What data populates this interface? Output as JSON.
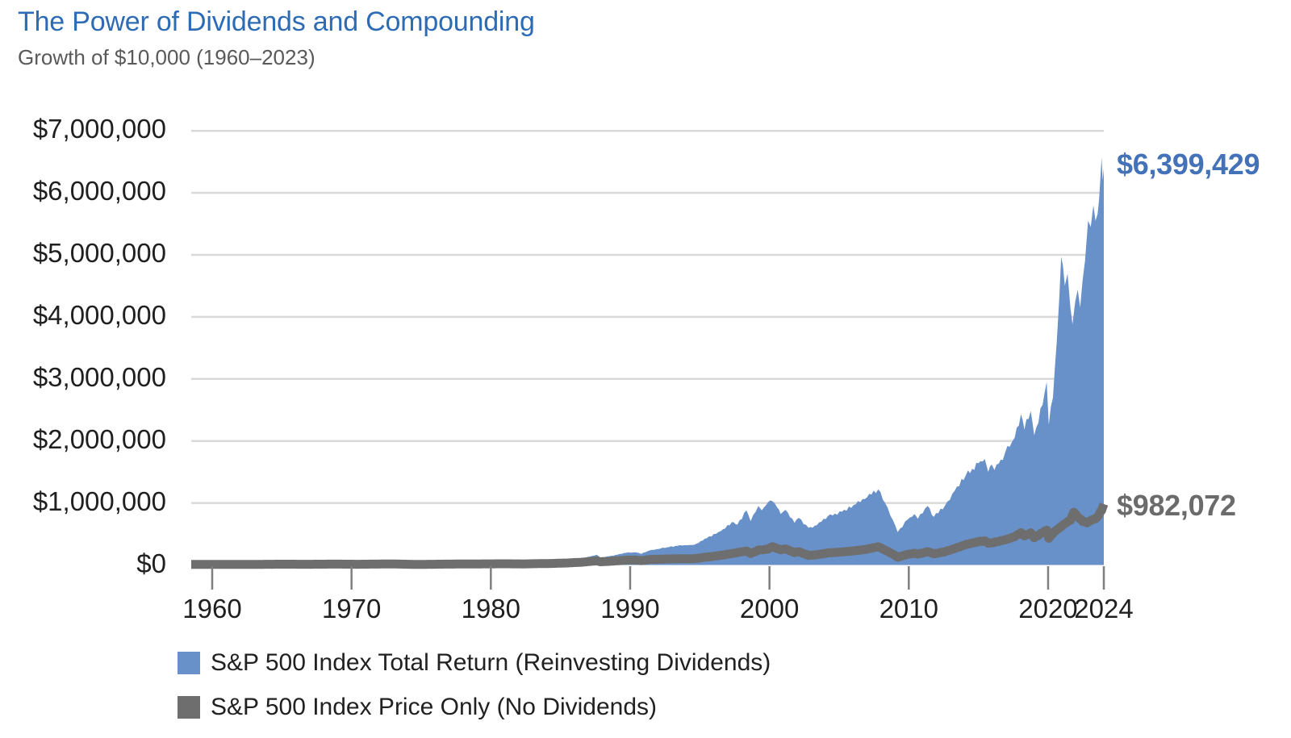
{
  "chart_data": {
    "type": "area",
    "title": "The Power of Dividends and Compounding",
    "subtitle": "Growth of $10,000 (1960–2023)",
    "legend_position": "bottom-left",
    "grid": "horizontal",
    "colors": {
      "title_text": "#2d6cb5",
      "subtitle_text": "#595959",
      "axis_text": "#1f1f1f",
      "gridline": "#d9d9d9",
      "tick_mark": "#7f7f7f"
    },
    "x_axis": {
      "ticks": [
        "1960",
        "1970",
        "1980",
        "1990",
        "2000",
        "2010",
        "2020",
        "2024"
      ],
      "tick_years": [
        1960,
        1970,
        1980,
        1990,
        2000,
        2010,
        2020,
        2024
      ],
      "range": [
        1960,
        2024
      ]
    },
    "y_axis": {
      "tick_labels": [
        "$0",
        "$1,000,000",
        "$2,000,000",
        "$3,000,000",
        "$4,000,000",
        "$5,000,000",
        "$6,000,000",
        "$7,000,000"
      ],
      "tick_values": [
        0,
        1000000,
        2000000,
        3000000,
        4000000,
        5000000,
        6000000,
        7000000
      ],
      "min": 0,
      "max": 7000000
    },
    "series": [
      {
        "name": "S&P 500 Index Total Return (Reinvesting Dividends)",
        "style": "area",
        "color": "#6890c9",
        "start_value": 10000,
        "end_value": 6399429,
        "end_label": "$6,399,429",
        "end_label_color": "#4472b8",
        "points": [
          [
            1960.0,
            10000
          ],
          [
            1961.0,
            12600
          ],
          [
            1961.9,
            13100
          ],
          [
            1962.5,
            10700
          ],
          [
            1963.8,
            14200
          ],
          [
            1965.8,
            17600
          ],
          [
            1966.7,
            15200
          ],
          [
            1968.8,
            20600
          ],
          [
            1970.4,
            17300
          ],
          [
            1971.5,
            22500
          ],
          [
            1972.9,
            26500
          ],
          [
            1973.8,
            21000
          ],
          [
            1974.7,
            16200
          ],
          [
            1976.0,
            25500
          ],
          [
            1976.9,
            28500
          ],
          [
            1977.8,
            26500
          ],
          [
            1979.0,
            31500
          ],
          [
            1980.9,
            43500
          ],
          [
            1982.3,
            40000
          ],
          [
            1983.5,
            58000
          ],
          [
            1984.4,
            57500
          ],
          [
            1985.5,
            82000
          ],
          [
            1986.5,
            105000
          ],
          [
            1987.6,
            165000
          ],
          [
            1987.85,
            122000
          ],
          [
            1988.5,
            140000
          ],
          [
            1989.7,
            195000
          ],
          [
            1990.4,
            205000
          ],
          [
            1990.8,
            178000
          ],
          [
            1991.4,
            235000
          ],
          [
            1992.2,
            268000
          ],
          [
            1993.4,
            310000
          ],
          [
            1994.6,
            325000
          ],
          [
            1995.5,
            430000
          ],
          [
            1996.5,
            545000
          ],
          [
            1997.3,
            690000
          ],
          [
            1997.7,
            650000
          ],
          [
            1998.35,
            880000
          ],
          [
            1998.65,
            705000
          ],
          [
            1999.2,
            950000
          ],
          [
            1999.45,
            880000
          ],
          [
            1999.9,
            1010000
          ],
          [
            2000.2,
            1030000
          ],
          [
            2000.55,
            930000
          ],
          [
            2000.8,
            820000
          ],
          [
            2001.15,
            890000
          ],
          [
            2001.8,
            680000
          ],
          [
            2002.1,
            760000
          ],
          [
            2002.8,
            600000
          ],
          [
            2003.4,
            640000
          ],
          [
            2004.2,
            790000
          ],
          [
            2005.2,
            860000
          ],
          [
            2006.2,
            980000
          ],
          [
            2007.0,
            1090000
          ],
          [
            2007.8,
            1220000
          ],
          [
            2008.3,
            1000000
          ],
          [
            2008.85,
            730000
          ],
          [
            2009.2,
            530000
          ],
          [
            2009.9,
            730000
          ],
          [
            2010.4,
            820000
          ],
          [
            2010.65,
            745000
          ],
          [
            2011.35,
            950000
          ],
          [
            2011.8,
            775000
          ],
          [
            2012.6,
            960000
          ],
          [
            2013.3,
            1200000
          ],
          [
            2014.1,
            1450000
          ],
          [
            2015.0,
            1640000
          ],
          [
            2015.45,
            1710000
          ],
          [
            2015.7,
            1500000
          ],
          [
            2015.95,
            1620000
          ],
          [
            2016.15,
            1530000
          ],
          [
            2016.9,
            1800000
          ],
          [
            2017.6,
            2050000
          ],
          [
            2018.05,
            2430000
          ],
          [
            2018.3,
            2180000
          ],
          [
            2018.75,
            2480000
          ],
          [
            2019.0,
            2090000
          ],
          [
            2019.6,
            2580000
          ],
          [
            2019.9,
            2950000
          ],
          [
            2020.05,
            2260000
          ],
          [
            2020.35,
            2700000
          ],
          [
            2020.62,
            3600000
          ],
          [
            2020.8,
            4300000
          ],
          [
            2020.94,
            4970000
          ],
          [
            2021.2,
            4500000
          ],
          [
            2021.4,
            4700000
          ],
          [
            2021.6,
            4150000
          ],
          [
            2021.75,
            3880000
          ],
          [
            2021.95,
            4250000
          ],
          [
            2022.13,
            4440000
          ],
          [
            2022.3,
            4150000
          ],
          [
            2022.65,
            4900000
          ],
          [
            2022.87,
            5550000
          ],
          [
            2023.06,
            5450000
          ],
          [
            2023.25,
            5800000
          ],
          [
            2023.4,
            5550000
          ],
          [
            2023.55,
            5660000
          ],
          [
            2023.66,
            5900000
          ],
          [
            2023.84,
            6570000
          ],
          [
            2023.92,
            6200000
          ],
          [
            2024.0,
            6399429
          ]
        ]
      },
      {
        "name": "S&P 500 Index Price Only (No Dividends)",
        "style": "line",
        "color": "#6e6e6e",
        "line_width": 11,
        "start_value": 10000,
        "end_value": 982072,
        "end_label": "$982,072",
        "end_label_color": "#6b6b6b",
        "points": [
          [
            1960.0,
            10000
          ],
          [
            1962.5,
            9000
          ],
          [
            1965.0,
            13500
          ],
          [
            1966.7,
            11500
          ],
          [
            1968.8,
            14500
          ],
          [
            1970.4,
            12000
          ],
          [
            1972.9,
            16500
          ],
          [
            1974.7,
            9500
          ],
          [
            1977.0,
            14500
          ],
          [
            1980.9,
            19500
          ],
          [
            1982.3,
            17500
          ],
          [
            1984.4,
            25000
          ],
          [
            1985.5,
            33000
          ],
          [
            1986.5,
            44000
          ],
          [
            1987.6,
            68000
          ],
          [
            1987.85,
            52000
          ],
          [
            1988.5,
            58000
          ],
          [
            1989.7,
            78000
          ],
          [
            1990.4,
            80000
          ],
          [
            1990.8,
            70000
          ],
          [
            1991.4,
            88000
          ],
          [
            1992.2,
            94000
          ],
          [
            1993.4,
            100000
          ],
          [
            1994.6,
            102000
          ],
          [
            1995.5,
            128000
          ],
          [
            1996.5,
            155000
          ],
          [
            1997.3,
            185000
          ],
          [
            1998.35,
            225000
          ],
          [
            1998.65,
            185000
          ],
          [
            1999.2,
            240000
          ],
          [
            1999.9,
            255000
          ],
          [
            2000.2,
            295000
          ],
          [
            2000.8,
            245000
          ],
          [
            2001.15,
            260000
          ],
          [
            2001.8,
            200000
          ],
          [
            2002.1,
            215000
          ],
          [
            2002.8,
            155000
          ],
          [
            2003.4,
            165000
          ],
          [
            2004.2,
            195000
          ],
          [
            2005.2,
            210000
          ],
          [
            2006.2,
            230000
          ],
          [
            2007.0,
            255000
          ],
          [
            2007.8,
            295000
          ],
          [
            2008.3,
            240000
          ],
          [
            2008.85,
            175000
          ],
          [
            2009.2,
            125000
          ],
          [
            2009.9,
            170000
          ],
          [
            2010.4,
            190000
          ],
          [
            2010.65,
            175000
          ],
          [
            2011.35,
            215000
          ],
          [
            2011.8,
            180000
          ],
          [
            2012.6,
            215000
          ],
          [
            2013.3,
            265000
          ],
          [
            2014.1,
            330000
          ],
          [
            2015.0,
            375000
          ],
          [
            2015.45,
            390000
          ],
          [
            2015.7,
            350000
          ],
          [
            2016.15,
            365000
          ],
          [
            2016.9,
            405000
          ],
          [
            2017.6,
            455000
          ],
          [
            2018.05,
            520000
          ],
          [
            2018.3,
            470000
          ],
          [
            2018.75,
            520000
          ],
          [
            2019.0,
            440000
          ],
          [
            2019.6,
            520000
          ],
          [
            2019.9,
            560000
          ],
          [
            2020.05,
            430000
          ],
          [
            2020.35,
            510000
          ],
          [
            2020.6,
            560000
          ],
          [
            2020.94,
            620000
          ],
          [
            2021.3,
            680000
          ],
          [
            2021.6,
            720000
          ],
          [
            2021.85,
            850000
          ],
          [
            2022.2,
            760000
          ],
          [
            2022.5,
            700000
          ],
          [
            2022.8,
            680000
          ],
          [
            2023.1,
            720000
          ],
          [
            2023.4,
            745000
          ],
          [
            2023.6,
            790000
          ],
          [
            2023.84,
            880000
          ],
          [
            2024.0,
            982072
          ]
        ]
      }
    ]
  }
}
